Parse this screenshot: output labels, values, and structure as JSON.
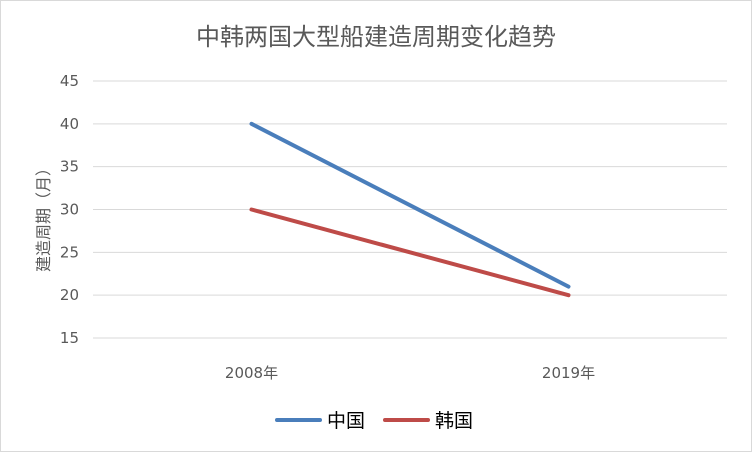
{
  "chart_data": {
    "type": "line",
    "title": "中韩两国大型船建造周期变化趋势",
    "xlabel": "",
    "ylabel": "建造周期（月）",
    "categories": [
      "2008年",
      "2019年"
    ],
    "series": [
      {
        "name": "中国",
        "values": [
          40,
          21
        ],
        "color": "#4a7ebb"
      },
      {
        "name": "韩国",
        "values": [
          30,
          20
        ],
        "color": "#be4b48"
      }
    ],
    "ylim": [
      15,
      45
    ],
    "yticks": [
      15,
      20,
      25,
      30,
      35,
      40,
      45
    ],
    "grid": true,
    "legend_position": "bottom"
  }
}
